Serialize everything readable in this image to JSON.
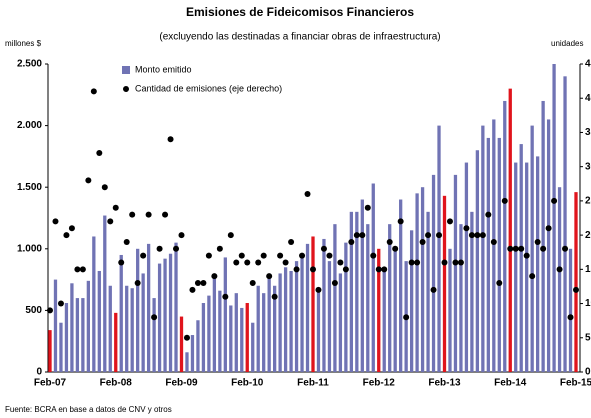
{
  "chart_data": {
    "type": "bar_scatter",
    "title": "Emisiones de Fideicomisos Financieros",
    "subtitle": "(excluyendo las destinadas a financiar obras de infraestructura)",
    "y_label": "millones $",
    "y2_label": "unidades",
    "source": "Fuente: BCRA en base a datos de CNV y otros",
    "categories": [
      "Feb-07",
      null,
      null,
      null,
      null,
      null,
      null,
      null,
      null,
      null,
      null,
      null,
      "Feb-08",
      null,
      null,
      null,
      null,
      null,
      null,
      null,
      null,
      null,
      null,
      null,
      "Feb-09",
      null,
      null,
      null,
      null,
      null,
      null,
      null,
      null,
      null,
      null,
      null,
      "Feb-10",
      null,
      null,
      null,
      null,
      null,
      null,
      null,
      null,
      null,
      null,
      null,
      "Feb-11",
      null,
      null,
      null,
      null,
      null,
      null,
      null,
      null,
      null,
      null,
      null,
      "Feb-12",
      null,
      null,
      null,
      null,
      null,
      null,
      null,
      null,
      null,
      null,
      null,
      "Feb-13",
      null,
      null,
      null,
      null,
      null,
      null,
      null,
      null,
      null,
      null,
      null,
      "Feb-14",
      null,
      null,
      null,
      null,
      null,
      null,
      null,
      null,
      null,
      null,
      null,
      "Feb-15"
    ],
    "series": [
      {
        "name": "Monto emitido",
        "type": "bar",
        "color": "#7073b4",
        "highlight_color": "#e0141c",
        "values": [
          340,
          750,
          400,
          560,
          720,
          600,
          600,
          740,
          1100,
          820,
          1270,
          700,
          480,
          950,
          700,
          680,
          1000,
          800,
          1040,
          600,
          880,
          920,
          960,
          1050,
          450,
          160,
          300,
          420,
          560,
          620,
          780,
          660,
          930,
          540,
          640,
          520,
          560,
          400,
          700,
          640,
          760,
          700,
          800,
          850,
          820,
          900,
          960,
          1040,
          1100,
          650,
          1080,
          900,
          1200,
          800,
          1050,
          1300,
          1300,
          1400,
          1200,
          1530,
          1000,
          850,
          1200,
          1000,
          1400,
          900,
          1150,
          1450,
          1500,
          1300,
          1600,
          2000,
          1430,
          1000,
          1600,
          1200,
          1700,
          1300,
          1800,
          2000,
          1900,
          2050,
          1900,
          2200,
          2300,
          1700,
          1850,
          1700,
          2000,
          1750,
          2200,
          2050,
          2500,
          1500,
          2400,
          1000,
          1460
        ]
      },
      {
        "name": "Cantidad de emisiones (eje derecho)",
        "type": "scatter",
        "axis": "y2",
        "color": "#000000",
        "values": [
          9,
          22,
          10,
          20,
          21,
          15,
          15,
          28,
          41,
          32,
          27,
          22,
          24,
          16,
          19,
          23,
          13,
          17,
          23,
          8,
          18,
          23,
          34,
          18,
          20,
          5,
          12,
          13,
          13,
          17,
          14,
          18,
          11,
          20,
          16,
          17,
          16,
          13,
          16,
          17,
          14,
          11,
          17,
          16,
          19,
          15,
          17,
          26,
          15,
          12,
          18,
          17,
          13,
          16,
          15,
          19,
          20,
          20,
          24,
          17,
          15,
          15,
          19,
          18,
          22,
          8,
          16,
          16,
          19,
          20,
          12,
          20,
          16,
          22,
          16,
          16,
          21,
          20,
          20,
          20,
          23,
          19,
          13,
          25,
          18,
          18,
          18,
          17,
          14,
          19,
          18,
          21,
          25,
          15,
          18,
          8,
          12
        ]
      }
    ],
    "ylim": [
      0,
      2500
    ],
    "yticks": [
      0,
      500,
      {
        "value": 1000,
        "label": "1.000"
      },
      {
        "value": 1500,
        "label": "1.500"
      },
      {
        "value": 2000,
        "label": "2.000"
      },
      {
        "value": 2500,
        "label": "2.500"
      }
    ],
    "y2lim": [
      0,
      45
    ],
    "y2ticks": [
      0,
      5,
      10,
      15,
      20,
      25,
      30,
      35,
      40,
      45
    ],
    "grid": false,
    "legend": "top-left"
  }
}
